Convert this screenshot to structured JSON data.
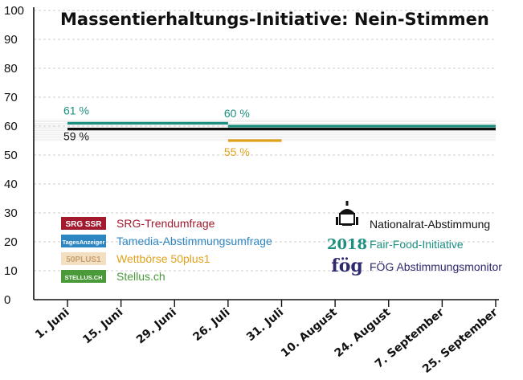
{
  "chart_data": {
    "type": "line",
    "title": "Massentierhaltungs-Initiative: Nein-Stimmen",
    "ylim": [
      0,
      100
    ],
    "yticks": [
      0,
      10,
      20,
      30,
      40,
      50,
      60,
      70,
      80,
      90,
      100
    ],
    "categories": [
      "1. Juni",
      "15. Juni",
      "29. Juni",
      "26. Juli",
      "31. Juli",
      "10. August",
      "24. August",
      "7. September",
      "25. September"
    ],
    "grid": "horizontal, fine lines between 55 and 62",
    "series": [
      {
        "name": "Nationalrat-Abstimmung",
        "color": "#111111",
        "from": "1. Juni",
        "to": "25. September",
        "value": 59,
        "label": "59 %"
      },
      {
        "name": "Fair-Food-Initiative",
        "color": "#1b8f80",
        "from": "1. Juni",
        "to": "26. Juli",
        "value": 61,
        "label": "61 %"
      },
      {
        "name": "Fair-Food-Initiative",
        "color": "#1b8f80",
        "from": "26. Juli",
        "to": "25. September",
        "value": 60,
        "label": "60 %"
      },
      {
        "name": "Wettbörse 50plus1",
        "color": "#e0a21c",
        "from": "26. Juli",
        "to": "31. Juli",
        "value": 55,
        "label": "55 %"
      }
    ],
    "legend_left": [
      {
        "badge": "SRG SSR",
        "label": "SRG-Trendumfrage",
        "color": "#a3192e",
        "badge_text_color": "#ffffff"
      },
      {
        "badge": "TagesAnzeiger",
        "label": "Tamedia-Abstimmungsumfrage",
        "color": "#2e86c1",
        "badge_text_color": "#ffffff"
      },
      {
        "badge": "50PLUS1",
        "label": "Wettbörse 50plus1",
        "color": "#f3e0c2",
        "text_color": "#e0a21c",
        "badge_text_color": "#c8a070"
      },
      {
        "badge": "STELLUS.CH",
        "label": "Stellus.ch",
        "color": "#4a9a3a",
        "badge_text_color": "#ffffff"
      }
    ],
    "legend_right": [
      {
        "icon": "parliament-icon",
        "label": "Nationalrat-Abstimmung",
        "color": "#111111"
      },
      {
        "icon_text": "2018",
        "icon": "fair-food-2018-icon",
        "label": "Fair-Food-Initiative",
        "color": "#1b8f80"
      },
      {
        "icon_text": "fög",
        "icon": "foeg-logo-icon",
        "label": "FÖG Abstimmungsmonitor",
        "color": "#2d2a6e"
      }
    ]
  }
}
